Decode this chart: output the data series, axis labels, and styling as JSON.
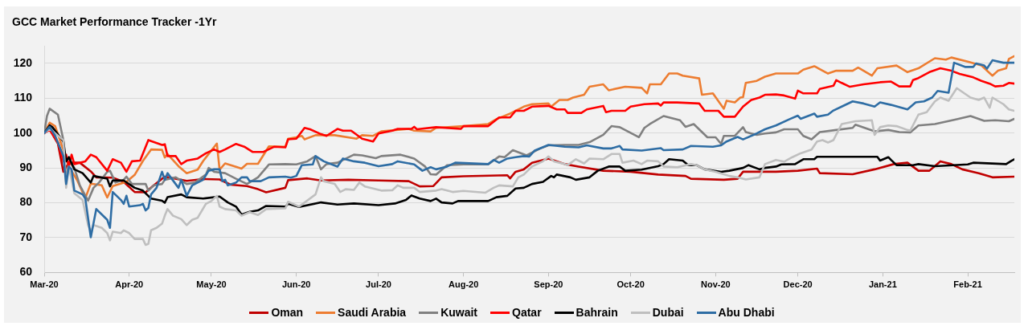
{
  "chart_data": {
    "type": "line",
    "title": "GCC Market Performance Tracker -1Yr",
    "xlim": [
      "2020-03-01",
      "2021-02-18"
    ],
    "xticks": [
      {
        "value": "2020-03-01",
        "label": "Mar-20"
      },
      {
        "value": "2020-04-01",
        "label": "Apr-20"
      },
      {
        "value": "2020-05-01",
        "label": "May-20"
      },
      {
        "value": "2020-06-01",
        "label": "Jun-20"
      },
      {
        "value": "2020-07-01",
        "label": "Jul-20"
      },
      {
        "value": "2020-08-01",
        "label": "Aug-20"
      },
      {
        "value": "2020-09-01",
        "label": "Sep-20"
      },
      {
        "value": "2020-10-01",
        "label": "Oct-20"
      },
      {
        "value": "2020-11-01",
        "label": "Nov-20"
      },
      {
        "value": "2020-12-01",
        "label": "Dec-20"
      },
      {
        "value": "2021-01-01",
        "label": "Jan-21"
      },
      {
        "value": "2021-02-01",
        "label": "Feb-21"
      }
    ],
    "ylim": [
      60,
      125
    ],
    "yticks": [
      60,
      70,
      80,
      90,
      100,
      110,
      120
    ],
    "grid": "y",
    "legend": "bottom",
    "series": [
      {
        "name": "Oman",
        "color": "#c00000",
        "x": [
          "2020-03-01",
          "2020-03-03",
          "2020-03-06",
          "2020-03-08",
          "2020-03-10",
          "2020-03-14",
          "2020-03-18",
          "2020-03-20",
          "2020-03-26",
          "2020-03-30",
          "2020-04-03",
          "2020-04-07",
          "2020-04-10",
          "2020-04-14",
          "2020-04-22",
          "2020-04-28",
          "2020-05-04",
          "2020-05-08",
          "2020-05-14",
          "2020-05-18",
          "2020-05-21",
          "2020-05-28",
          "2020-05-29",
          "2020-06-05",
          "2020-06-10",
          "2020-06-20",
          "2020-07-01",
          "2020-07-12",
          "2020-07-16",
          "2020-07-21",
          "2020-07-24",
          "2020-08-01",
          "2020-08-17",
          "2020-08-18",
          "2020-08-20",
          "2020-08-23",
          "2020-08-26",
          "2020-09-01",
          "2020-09-07",
          "2020-09-12",
          "2020-09-21",
          "2020-10-01",
          "2020-10-11",
          "2020-10-21",
          "2020-10-23",
          "2020-11-04",
          "2020-11-09",
          "2020-11-11",
          "2020-11-23",
          "2020-12-01",
          "2020-12-08",
          "2020-12-09",
          "2020-12-21",
          "2020-12-29",
          "2021-01-05",
          "2021-01-10",
          "2021-01-14",
          "2021-01-18",
          "2021-01-22",
          "2021-01-26",
          "2021-01-30",
          "2021-02-05",
          "2021-02-10",
          "2021-02-18"
        ],
        "values": [
          100,
          101,
          97,
          88.9,
          91.5,
          91.5,
          89,
          87.3,
          87.2,
          86,
          83.1,
          83,
          85,
          87.5,
          86.3,
          86.8,
          86.7,
          85.2,
          84.8,
          83.9,
          83,
          84.3,
          86.5,
          87,
          86.4,
          86.6,
          86.4,
          86.2,
          84.7,
          84.8,
          87.3,
          87.6,
          87.9,
          87,
          88.9,
          89.6,
          91.5,
          92.7,
          91.1,
          90.4,
          89.2,
          88.9,
          88.1,
          87.7,
          86.9,
          86.6,
          86.9,
          88.9,
          88.9,
          89.2,
          89.8,
          88.5,
          88.2,
          89.6,
          91.1,
          91.5,
          89.2,
          89.2,
          91.9,
          91.1,
          89.6,
          88.5,
          87.3,
          87.5
        ]
      },
      {
        "name": "Saudi Arabia",
        "color": "#ed7d31",
        "x": [
          "2020-03-01",
          "2020-03-03",
          "2020-03-05",
          "2020-03-08",
          "2020-03-10",
          "2020-03-13",
          "2020-03-16",
          "2020-03-18",
          "2020-03-22",
          "2020-03-24",
          "2020-03-26",
          "2020-03-31",
          "2020-04-03",
          "2020-04-06",
          "2020-04-09",
          "2020-04-13",
          "2020-04-14",
          "2020-04-15",
          "2020-04-19",
          "2020-04-22",
          "2020-04-26",
          "2020-04-28",
          "2020-05-03",
          "2020-05-04",
          "2020-05-06",
          "2020-05-10",
          "2020-05-12",
          "2020-05-14",
          "2020-05-18",
          "2020-05-22",
          "2020-05-28",
          "2020-05-29",
          "2020-06-01",
          "2020-06-03",
          "2020-06-04",
          "2020-06-08",
          "2020-06-15",
          "2020-06-23",
          "2020-06-25",
          "2020-06-29",
          "2020-07-02",
          "2020-07-12",
          "2020-07-14",
          "2020-07-20",
          "2020-07-22",
          "2020-08-01",
          "2020-08-10",
          "2020-08-13",
          "2020-08-18",
          "2020-08-23",
          "2020-08-26",
          "2020-09-01",
          "2020-09-02",
          "2020-09-05",
          "2020-09-08",
          "2020-09-10",
          "2020-09-14",
          "2020-09-16",
          "2020-09-21",
          "2020-09-23",
          "2020-09-29",
          "2020-10-05",
          "2020-10-07",
          "2020-10-08",
          "2020-10-12",
          "2020-10-15",
          "2020-10-18",
          "2020-10-20",
          "2020-10-26",
          "2020-10-27",
          "2020-10-31",
          "2020-11-04",
          "2020-11-05",
          "2020-11-08",
          "2020-11-10",
          "2020-11-11",
          "2020-11-12",
          "2020-11-16",
          "2020-11-19",
          "2020-11-23",
          "2020-12-01",
          "2020-12-03",
          "2020-12-07",
          "2020-12-12",
          "2020-12-15",
          "2020-12-21",
          "2020-12-23",
          "2020-12-28",
          "2020-12-30",
          "2021-01-06",
          "2021-01-10",
          "2021-01-14",
          "2021-01-20",
          "2021-01-24",
          "2021-01-26",
          "2021-02-01",
          "2021-02-06",
          "2021-02-10",
          "2021-02-12",
          "2021-02-15",
          "2021-02-16",
          "2021-02-18"
        ],
        "values": [
          100,
          103,
          102,
          95,
          90.4,
          86.5,
          81.3,
          85.5,
          85,
          81.5,
          84.8,
          86,
          88,
          92,
          95.3,
          95.2,
          93,
          94,
          90.5,
          88.5,
          89.5,
          92,
          97,
          89.5,
          91.3,
          90.3,
          89.8,
          91.2,
          91.2,
          96.2,
          96.1,
          98.4,
          98.8,
          99.2,
          98.2,
          99.4,
          99.4,
          98.4,
          99.4,
          99.2,
          100.5,
          101.2,
          100.7,
          100.5,
          101.5,
          102,
          102.6,
          104,
          105.6,
          107.6,
          108.3,
          108.5,
          107.6,
          109.5,
          109.5,
          110.2,
          111,
          113.3,
          114,
          112.3,
          113.3,
          113,
          111.4,
          114,
          114,
          117.1,
          117.1,
          116.5,
          115.7,
          111,
          111.4,
          107,
          109.3,
          108.8,
          110.2,
          110.3,
          114.4,
          115,
          116.2,
          117.1,
          117.1,
          118.2,
          119.2,
          117.1,
          117.9,
          117.9,
          118.8,
          116.5,
          118.6,
          119.4,
          117.5,
          118.6,
          121.5,
          121.1,
          121.7,
          120.5,
          119.4,
          116.5,
          117.9,
          118.6,
          121.3,
          122.1
        ]
      },
      {
        "name": "Kuwait",
        "color": "#808080",
        "x": [
          "2020-03-01",
          "2020-03-02",
          "2020-03-03",
          "2020-03-06",
          "2020-03-08",
          "2020-03-09",
          "2020-03-10",
          "2020-03-12",
          "2020-03-14",
          "2020-03-17",
          "2020-03-19",
          "2020-03-21",
          "2020-03-24",
          "2020-03-25",
          "2020-03-27",
          "2020-03-30",
          "2020-03-31",
          "2020-04-02",
          "2020-04-07",
          "2020-04-08",
          "2020-04-10",
          "2020-04-13",
          "2020-04-14",
          "2020-04-18",
          "2020-04-22",
          "2020-04-25",
          "2020-04-29",
          "2020-04-30",
          "2020-05-02",
          "2020-05-06",
          "2020-05-10",
          "2020-05-14",
          "2020-05-18",
          "2020-05-22",
          "2020-05-28",
          "2020-06-01",
          "2020-06-05",
          "2020-06-08",
          "2020-06-10",
          "2020-06-12",
          "2020-06-16",
          "2020-06-22",
          "2020-06-25",
          "2020-06-30",
          "2020-07-02",
          "2020-07-09",
          "2020-07-14",
          "2020-07-18",
          "2020-07-20",
          "2020-07-22",
          "2020-07-26",
          "2020-08-01",
          "2020-08-10",
          "2020-08-14",
          "2020-08-16",
          "2020-08-19",
          "2020-08-24",
          "2020-08-29",
          "2020-09-01",
          "2020-09-07",
          "2020-09-12",
          "2020-09-16",
          "2020-09-21",
          "2020-09-24",
          "2020-09-27",
          "2020-10-04",
          "2020-10-06",
          "2020-10-08",
          "2020-10-13",
          "2020-10-15",
          "2020-10-19",
          "2020-10-21",
          "2020-10-24",
          "2020-10-29",
          "2020-11-01",
          "2020-11-03",
          "2020-11-04",
          "2020-11-08",
          "2020-11-11",
          "2020-11-12",
          "2020-11-16",
          "2020-11-19",
          "2020-11-23",
          "2020-11-26",
          "2020-12-01",
          "2020-12-03",
          "2020-12-06",
          "2020-12-09",
          "2020-12-15",
          "2020-12-21",
          "2020-12-22",
          "2020-12-29",
          "2021-01-03",
          "2021-01-07",
          "2021-01-11",
          "2021-01-14",
          "2021-01-20",
          "2021-01-28",
          "2021-02-02",
          "2021-02-07",
          "2021-02-11",
          "2021-02-16",
          "2021-02-18"
        ],
        "values": [
          100,
          104.9,
          107,
          105.3,
          98,
          85.8,
          91.9,
          90,
          85,
          80.6,
          84.3,
          85.8,
          88.9,
          89.2,
          85.8,
          86.6,
          87.5,
          85.4,
          85.4,
          83.5,
          85,
          85.4,
          86.6,
          87.3,
          85.4,
          85.8,
          88.1,
          90,
          88.9,
          88.5,
          86.9,
          85.4,
          87.3,
          91,
          91.1,
          91,
          91.9,
          93.4,
          89.6,
          91.1,
          91.5,
          93.8,
          93.6,
          92.8,
          93.4,
          93.8,
          92.7,
          90.4,
          88.2,
          88.1,
          90.8,
          91,
          91,
          93.3,
          93.1,
          95.1,
          93.6,
          95.6,
          96.5,
          96.6,
          96.6,
          97.4,
          99.5,
          102,
          101.7,
          98.8,
          101.5,
          102.6,
          104.9,
          104.5,
          103.7,
          101.8,
          102.6,
          98.8,
          98.8,
          96.9,
          99.2,
          99.2,
          101.7,
          100.3,
          99.5,
          99.9,
          100.2,
          101.1,
          101.1,
          99.2,
          98.2,
          100.3,
          100.9,
          101.5,
          102.4,
          100.5,
          100.9,
          100.3,
          100.2,
          102.2,
          102.6,
          104,
          104.9,
          103.5,
          103.7,
          103.4,
          104.1
        ]
      },
      {
        "name": "Qatar",
        "color": "#ff0000",
        "x": [
          "2020-03-01",
          "2020-03-03",
          "2020-03-06",
          "2020-03-08",
          "2020-03-09",
          "2020-03-10",
          "2020-03-11",
          "2020-03-12",
          "2020-03-16",
          "2020-03-18",
          "2020-03-20",
          "2020-03-24",
          "2020-03-26",
          "2020-03-29",
          "2020-03-31",
          "2020-04-02",
          "2020-04-05",
          "2020-04-08",
          "2020-04-13",
          "2020-04-14",
          "2020-04-15",
          "2020-04-18",
          "2020-04-20",
          "2020-04-22",
          "2020-04-26",
          "2020-04-29",
          "2020-05-02",
          "2020-05-04",
          "2020-05-06",
          "2020-05-10",
          "2020-05-13",
          "2020-05-16",
          "2020-05-20",
          "2020-05-24",
          "2020-05-28",
          "2020-05-29",
          "2020-06-01",
          "2020-06-04",
          "2020-06-06",
          "2020-06-10",
          "2020-06-12",
          "2020-06-16",
          "2020-06-18",
          "2020-06-21",
          "2020-06-25",
          "2020-06-29",
          "2020-07-01",
          "2020-07-06",
          "2020-07-08",
          "2020-07-13",
          "2020-07-14",
          "2020-07-15",
          "2020-07-22",
          "2020-07-31",
          "2020-08-01",
          "2020-08-10",
          "2020-08-14",
          "2020-08-18",
          "2020-08-20",
          "2020-08-23",
          "2020-08-26",
          "2020-09-01",
          "2020-09-04",
          "2020-09-07",
          "2020-09-08",
          "2020-09-13",
          "2020-09-15",
          "2020-09-21",
          "2020-09-22",
          "2020-09-24",
          "2020-09-29",
          "2020-10-01",
          "2020-10-06",
          "2020-10-11",
          "2020-10-12",
          "2020-10-13",
          "2020-10-18",
          "2020-10-26",
          "2020-10-28",
          "2020-11-02",
          "2020-11-04",
          "2020-11-08",
          "2020-11-11",
          "2020-11-14",
          "2020-11-17",
          "2020-11-19",
          "2020-11-23",
          "2020-11-26",
          "2020-11-30",
          "2020-12-01",
          "2020-12-03",
          "2020-12-08",
          "2020-12-09",
          "2020-12-14",
          "2020-12-15",
          "2020-12-17",
          "2020-12-20",
          "2020-12-25",
          "2020-12-31",
          "2021-01-04",
          "2021-01-07",
          "2021-01-11",
          "2021-01-12",
          "2021-01-14",
          "2021-01-18",
          "2021-01-22",
          "2021-01-26",
          "2021-01-29",
          "2021-02-03",
          "2021-02-06",
          "2021-02-09",
          "2021-02-11",
          "2021-02-14",
          "2021-02-16",
          "2021-02-18"
        ],
        "values": [
          100,
          101,
          97.3,
          91.9,
          93.8,
          90.4,
          93.8,
          91.1,
          91.9,
          93.8,
          93.1,
          89.2,
          92.5,
          91.5,
          88.9,
          91.9,
          92.1,
          98,
          96.6,
          96.8,
          93.4,
          93.4,
          91.1,
          92.1,
          92.7,
          94.2,
          95.3,
          94.6,
          95.3,
          96.9,
          96.1,
          94.6,
          94.6,
          96.1,
          95.9,
          98.2,
          98.4,
          101.5,
          101.1,
          99.7,
          99.2,
          101.2,
          100.7,
          100.7,
          98.4,
          97.6,
          99.9,
          100.7,
          101.2,
          101.2,
          101.8,
          101.1,
          101.7,
          101.2,
          102,
          102,
          104.5,
          104.5,
          106.4,
          106.4,
          107.6,
          107.8,
          106.8,
          106.8,
          105.8,
          105.8,
          106.8,
          107.8,
          106,
          106.4,
          106.4,
          107.6,
          108.3,
          108.5,
          107.9,
          108.8,
          108.8,
          108.5,
          106.4,
          106.4,
          104.7,
          104.7,
          107.6,
          109.5,
          110.2,
          111,
          111.1,
          110.8,
          109.9,
          112.2,
          111.4,
          111.4,
          112.7,
          113.6,
          115.2,
          114.4,
          113.3,
          114,
          114.6,
          114.8,
          113.4,
          113.4,
          115.2,
          115.8,
          117.5,
          118.6,
          117.9,
          117,
          116,
          115,
          114.2,
          113.4,
          113.6,
          114.4,
          114.2
        ]
      },
      {
        "name": "Bahrain",
        "color": "#000000",
        "x": [
          "2020-03-01",
          "2020-03-03",
          "2020-03-04",
          "2020-03-08",
          "2020-03-09",
          "2020-03-10",
          "2020-03-12",
          "2020-03-15",
          "2020-03-18",
          "2020-03-19",
          "2020-03-24",
          "2020-03-25",
          "2020-03-26",
          "2020-03-30",
          "2020-04-03",
          "2020-04-06",
          "2020-04-09",
          "2020-04-13",
          "2020-04-14",
          "2020-04-15",
          "2020-04-20",
          "2020-04-22",
          "2020-04-28",
          "2020-05-04",
          "2020-05-07",
          "2020-05-10",
          "2020-05-12",
          "2020-05-15",
          "2020-05-18",
          "2020-05-21",
          "2020-05-28",
          "2020-05-29",
          "2020-06-02",
          "2020-06-10",
          "2020-06-16",
          "2020-06-22",
          "2020-07-01",
          "2020-07-07",
          "2020-07-11",
          "2020-07-13",
          "2020-07-16",
          "2020-07-20",
          "2020-07-22",
          "2020-07-24",
          "2020-07-28",
          "2020-07-30",
          "2020-08-10",
          "2020-08-13",
          "2020-08-17",
          "2020-08-20",
          "2020-08-23",
          "2020-08-26",
          "2020-08-30",
          "2020-09-02",
          "2020-09-03",
          "2020-09-04",
          "2020-09-09",
          "2020-09-11",
          "2020-09-16",
          "2020-09-19",
          "2020-09-23",
          "2020-09-27",
          "2020-09-29",
          "2020-10-05",
          "2020-10-11",
          "2020-10-13",
          "2020-10-15",
          "2020-10-20",
          "2020-10-22",
          "2020-10-25",
          "2020-10-28",
          "2020-11-03",
          "2020-11-06",
          "2020-11-11",
          "2020-11-13",
          "2020-11-17",
          "2020-11-19",
          "2020-11-23",
          "2020-11-25",
          "2020-11-30",
          "2020-12-03",
          "2020-12-07",
          "2020-12-08",
          "2020-12-30",
          "2020-12-31",
          "2021-01-03",
          "2021-01-04",
          "2021-01-06",
          "2021-01-12",
          "2021-01-14",
          "2021-01-20",
          "2021-02-01",
          "2021-02-03",
          "2021-02-15",
          "2021-02-17",
          "2021-02-18"
        ],
        "values": [
          100,
          102.2,
          101.7,
          97.6,
          91.9,
          93.1,
          89.6,
          88.5,
          85.8,
          87.7,
          86.9,
          84.7,
          86.4,
          86.4,
          84.3,
          83.5,
          81.2,
          80.6,
          80,
          81.6,
          82.4,
          81.6,
          81.2,
          81.8,
          80.1,
          78.9,
          76.6,
          77.4,
          77.8,
          79.1,
          78.9,
          79.7,
          78.8,
          80.1,
          79.5,
          79.8,
          79.3,
          79.8,
          80.8,
          82.1,
          81.2,
          80.5,
          81.2,
          80.1,
          79.8,
          80.5,
          80.5,
          81.6,
          82,
          84.1,
          84.3,
          85.4,
          86,
          87.7,
          87.3,
          88.1,
          87.3,
          86.6,
          87.3,
          89.2,
          90.4,
          90.4,
          89.2,
          89.5,
          90.5,
          91.1,
          92.5,
          92.1,
          90.8,
          90.8,
          89.6,
          88.9,
          89.2,
          90,
          90.8,
          89.6,
          90,
          90.4,
          91,
          91.1,
          92.5,
          92.5,
          93.2,
          93.2,
          92.1,
          93.1,
          92.3,
          90.8,
          90.8,
          91.1,
          90.5,
          91,
          91.5,
          91.1,
          92.1,
          92.5
        ]
      },
      {
        "name": "Dubai",
        "color": "#bfbfbf",
        "x": [
          "2020-03-01",
          "2020-03-03",
          "2020-03-08",
          "2020-03-09",
          "2020-03-10",
          "2020-03-12",
          "2020-03-15",
          "2020-03-17",
          "2020-03-18",
          "2020-03-19",
          "2020-03-22",
          "2020-03-24",
          "2020-03-25",
          "2020-03-26",
          "2020-03-29",
          "2020-03-30",
          "2020-04-01",
          "2020-04-03",
          "2020-04-06",
          "2020-04-07",
          "2020-04-08",
          "2020-04-09",
          "2020-04-11",
          "2020-04-13",
          "2020-04-14",
          "2020-04-15",
          "2020-04-17",
          "2020-04-20",
          "2020-04-22",
          "2020-04-24",
          "2020-04-26",
          "2020-04-29",
          "2020-05-01",
          "2020-05-03",
          "2020-05-04",
          "2020-05-06",
          "2020-05-10",
          "2020-05-12",
          "2020-05-15",
          "2020-05-18",
          "2020-05-21",
          "2020-05-28",
          "2020-05-29",
          "2020-06-02",
          "2020-06-08",
          "2020-06-10",
          "2020-06-11",
          "2020-06-15",
          "2020-06-17",
          "2020-06-19",
          "2020-06-22",
          "2020-06-24",
          "2020-06-26",
          "2020-07-02",
          "2020-07-06",
          "2020-07-08",
          "2020-07-10",
          "2020-07-14",
          "2020-07-16",
          "2020-07-22",
          "2020-07-24",
          "2020-07-28",
          "2020-08-01",
          "2020-08-09",
          "2020-08-12",
          "2020-08-14",
          "2020-08-19",
          "2020-08-21",
          "2020-08-23",
          "2020-08-26",
          "2020-08-30",
          "2020-09-01",
          "2020-09-03",
          "2020-09-07",
          "2020-09-08",
          "2020-09-11",
          "2020-09-14",
          "2020-09-16",
          "2020-09-21",
          "2020-09-24",
          "2020-09-27",
          "2020-09-28",
          "2020-10-02",
          "2020-10-05",
          "2020-10-07",
          "2020-10-11",
          "2020-10-13",
          "2020-10-18",
          "2020-10-23",
          "2020-10-25",
          "2020-10-28",
          "2020-11-01",
          "2020-11-06",
          "2020-11-09",
          "2020-11-12",
          "2020-11-17",
          "2020-11-19",
          "2020-11-23",
          "2020-11-26",
          "2020-11-29",
          "2020-12-02",
          "2020-12-06",
          "2020-12-08",
          "2020-12-10",
          "2020-12-12",
          "2020-12-14",
          "2020-12-17",
          "2020-12-22",
          "2020-12-28",
          "2020-12-29",
          "2020-12-31",
          "2021-01-03",
          "2021-01-06",
          "2021-01-10",
          "2021-01-11",
          "2021-01-14",
          "2021-01-17",
          "2021-01-20",
          "2021-01-22",
          "2021-01-25",
          "2021-01-28",
          "2021-02-02",
          "2021-02-05",
          "2021-02-07",
          "2021-02-09",
          "2021-02-10",
          "2021-02-14",
          "2021-02-16",
          "2021-02-18"
        ],
        "values": [
          100,
          101.2,
          98,
          84.3,
          90.4,
          82.7,
          80.8,
          73.6,
          71.7,
          73.6,
          72.8,
          71.3,
          69.2,
          71.7,
          71.3,
          72.1,
          71.3,
          69.6,
          69.6,
          67.9,
          68.2,
          72.1,
          72.8,
          74,
          76.3,
          78.2,
          76.3,
          75.3,
          73.6,
          75.1,
          75.7,
          79.7,
          80.5,
          82,
          78.9,
          78.2,
          77.8,
          76.3,
          77.3,
          76.5,
          78.2,
          78.4,
          80.3,
          78.9,
          82.4,
          87.3,
          86.2,
          85.4,
          83.1,
          83.9,
          83.7,
          85.8,
          84.7,
          83.5,
          83.6,
          85,
          84.3,
          84.3,
          83.1,
          83.5,
          83.9,
          83.1,
          83.4,
          82.9,
          84.3,
          85,
          84.7,
          87.3,
          88.1,
          90.4,
          91.9,
          93.3,
          91.9,
          91.1,
          90.8,
          92.5,
          91.3,
          92.7,
          92.5,
          94,
          94,
          91.5,
          92.1,
          91.1,
          92.1,
          91.9,
          90.4,
          90.2,
          91.1,
          90.8,
          89.6,
          88.9,
          87.7,
          87.3,
          86.7,
          87.3,
          91.1,
          92.3,
          91.8,
          93.1,
          94.2,
          95.3,
          97.6,
          98,
          97.3,
          98,
          102.6,
          103.4,
          103.7,
          99.5,
          101.7,
          102.2,
          102,
          100.9,
          100.7,
          105.3,
          106,
          109.1,
          110.2,
          109.3,
          112.9,
          110.2,
          109.5,
          110.2,
          107.3,
          110.2,
          108.3,
          106.8,
          106.4
        ]
      },
      {
        "name": "Abu Dhabi",
        "color": "#2e6da4",
        "x": [
          "2020-03-01",
          "2020-03-03",
          "2020-03-05",
          "2020-03-08",
          "2020-03-09",
          "2020-03-10",
          "2020-03-11",
          "2020-03-12",
          "2020-03-15",
          "2020-03-16",
          "2020-03-18",
          "2020-03-20",
          "2020-03-24",
          "2020-03-25",
          "2020-03-26",
          "2020-03-29",
          "2020-03-30",
          "2020-03-31",
          "2020-04-01",
          "2020-04-05",
          "2020-04-06",
          "2020-04-07",
          "2020-04-08",
          "2020-04-09",
          "2020-04-11",
          "2020-04-13",
          "2020-04-14",
          "2020-04-15",
          "2020-04-19",
          "2020-04-20",
          "2020-04-22",
          "2020-04-24",
          "2020-04-28",
          "2020-04-30",
          "2020-05-02",
          "2020-05-04",
          "2020-05-05",
          "2020-05-06",
          "2020-05-07",
          "2020-05-10",
          "2020-05-12",
          "2020-05-14",
          "2020-05-15",
          "2020-05-19",
          "2020-05-22",
          "2020-05-28",
          "2020-05-30",
          "2020-06-01",
          "2020-06-03",
          "2020-06-07",
          "2020-06-08",
          "2020-06-11",
          "2020-06-16",
          "2020-06-18",
          "2020-06-22",
          "2020-06-26",
          "2020-07-01",
          "2020-07-06",
          "2020-07-08",
          "2020-07-14",
          "2020-07-17",
          "2020-07-20",
          "2020-07-22",
          "2020-07-26",
          "2020-07-29",
          "2020-08-10",
          "2020-08-12",
          "2020-08-14",
          "2020-08-17",
          "2020-08-20",
          "2020-08-23",
          "2020-08-25",
          "2020-08-27",
          "2020-09-01",
          "2020-09-07",
          "2020-09-12",
          "2020-09-15",
          "2020-09-21",
          "2020-09-24",
          "2020-09-27",
          "2020-09-28",
          "2020-10-05",
          "2020-10-12",
          "2020-10-13",
          "2020-10-20",
          "2020-10-23",
          "2020-10-31",
          "2020-11-03",
          "2020-11-05",
          "2020-11-09",
          "2020-11-11",
          "2020-11-16",
          "2020-11-19",
          "2020-11-23",
          "2020-11-28",
          "2020-12-01",
          "2020-12-02",
          "2020-12-07",
          "2020-12-08",
          "2020-12-12",
          "2020-12-14",
          "2020-12-17",
          "2020-12-21",
          "2020-12-25",
          "2020-12-29",
          "2020-12-31",
          "2021-01-04",
          "2021-01-10",
          "2021-01-13",
          "2021-01-16",
          "2021-01-19",
          "2021-01-21",
          "2021-01-25",
          "2021-01-27",
          "2021-01-31",
          "2021-02-03",
          "2021-02-04",
          "2021-02-07",
          "2021-02-08",
          "2021-02-10",
          "2021-02-14",
          "2021-02-18"
        ],
        "values": [
          100,
          101.8,
          99.2,
          93.4,
          85.4,
          90.4,
          89.6,
          83.5,
          82.4,
          81.2,
          70.1,
          78.2,
          75.1,
          72.8,
          83.1,
          80.8,
          79.7,
          82,
          78.9,
          79.3,
          79.7,
          77.8,
          78.5,
          82.4,
          84.3,
          88.9,
          86.6,
          88.5,
          84.3,
          86.6,
          82,
          85,
          86.6,
          89.2,
          89.6,
          89.6,
          86.2,
          86.6,
          85,
          85.8,
          87.3,
          87.3,
          86.2,
          86.2,
          87.3,
          87.5,
          87.2,
          87.7,
          90.8,
          91,
          93.4,
          91.9,
          90.4,
          92.7,
          91.9,
          91.5,
          90.5,
          91.1,
          91.9,
          91,
          89.2,
          90.2,
          89.6,
          90.4,
          91.5,
          91.1,
          92.3,
          91.5,
          92.7,
          93.1,
          93.4,
          93.3,
          95,
          96.6,
          96.1,
          95.9,
          96.5,
          95.6,
          95.6,
          96.3,
          95.3,
          95,
          95.7,
          95.1,
          95.3,
          96.3,
          96.1,
          96.5,
          97.6,
          98.9,
          98.2,
          99.9,
          101.1,
          102.2,
          104,
          105,
          104.1,
          105.6,
          104.7,
          105.3,
          106.5,
          107.6,
          109.1,
          108.5,
          107.6,
          108.8,
          108.1,
          106.8,
          108.8,
          109.1,
          110.2,
          112.1,
          111.6,
          120.2,
          119,
          119,
          120,
          119.4,
          118.5,
          120.9,
          120.2,
          120.2
        ]
      }
    ]
  }
}
